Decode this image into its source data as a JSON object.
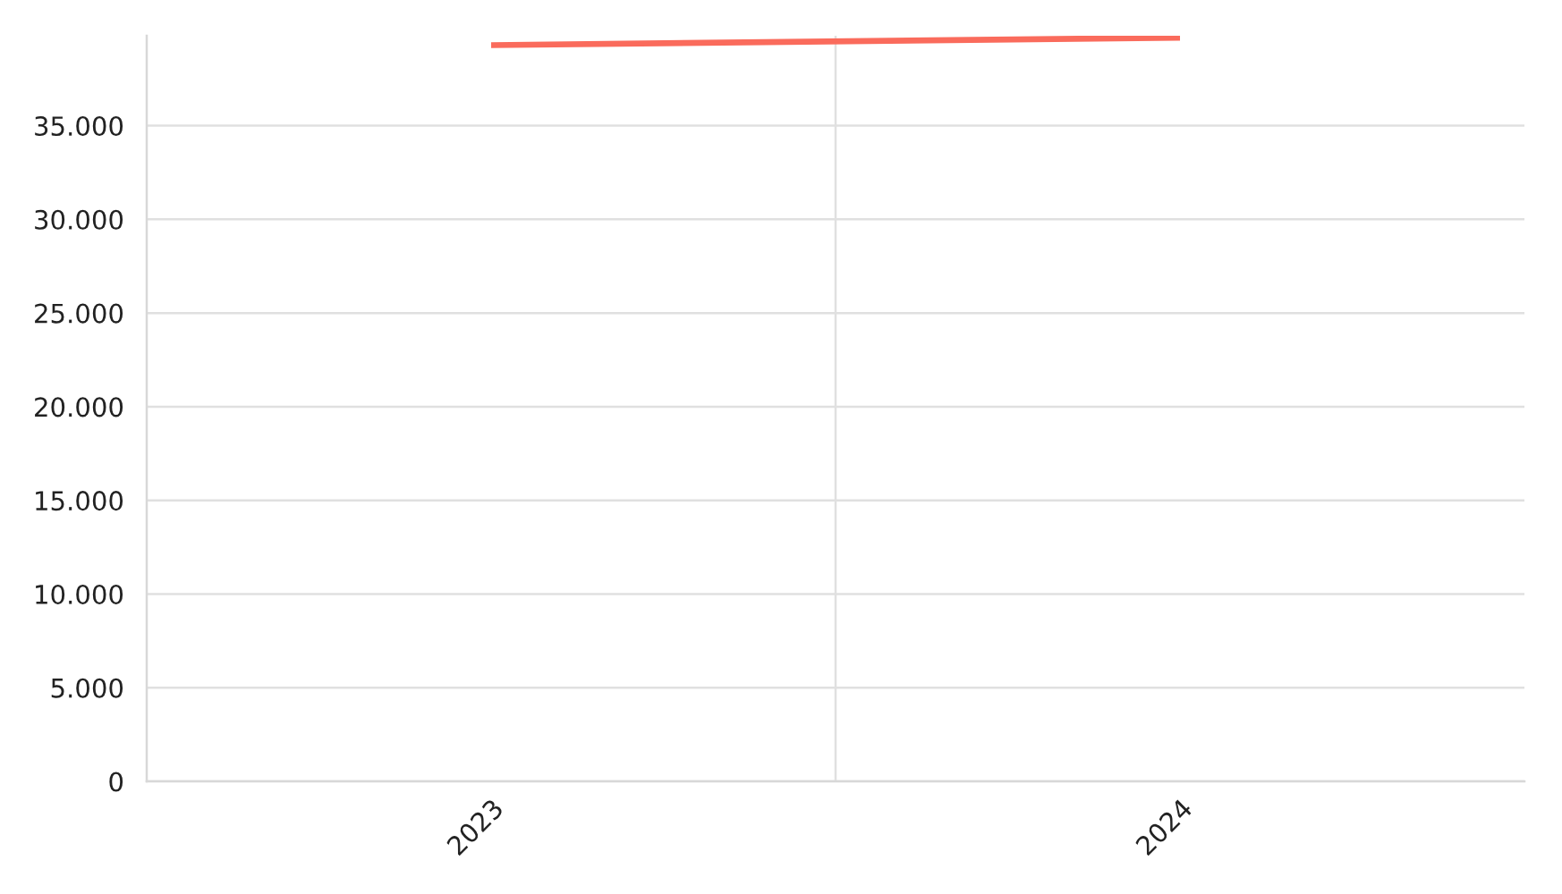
{
  "chart_data": {
    "type": "line",
    "categories": [
      "2023",
      "2024"
    ],
    "series": [
      {
        "color": "#fa6b5c",
        "values": [
          39300,
          39700
        ]
      }
    ],
    "ylim": [
      0,
      39800
    ],
    "yticks": [
      {
        "value": 0,
        "label": "0"
      },
      {
        "value": 5000,
        "label": "5.000"
      },
      {
        "value": 10000,
        "label": "10.000"
      },
      {
        "value": 15000,
        "label": "15.000"
      },
      {
        "value": 20000,
        "label": "20.000"
      },
      {
        "value": 25000,
        "label": "25.000"
      },
      {
        "value": 30000,
        "label": "30.000"
      },
      {
        "value": 35000,
        "label": "35.000"
      }
    ],
    "grid": true,
    "marker": "none",
    "line_style": "solid"
  }
}
